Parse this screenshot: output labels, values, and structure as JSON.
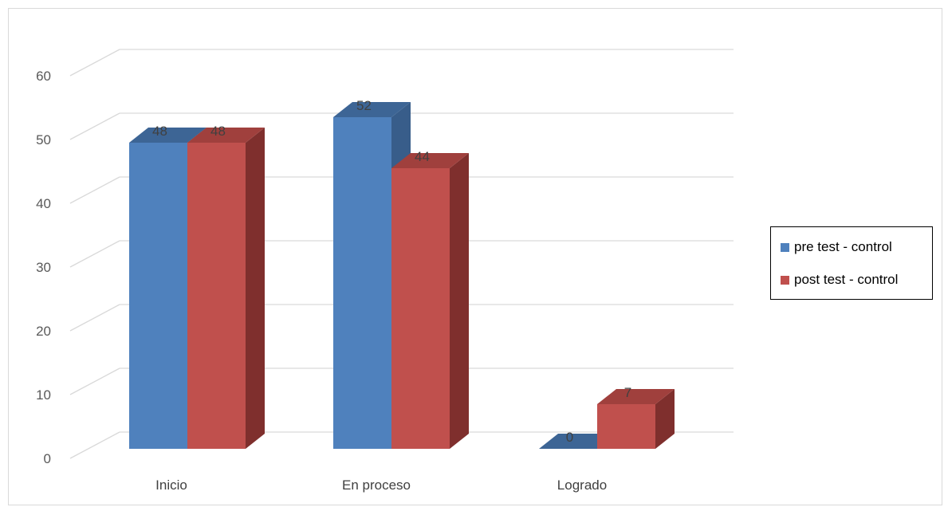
{
  "chart_data": {
    "type": "bar",
    "style": "3d-clustered-column",
    "categories": [
      "Inicio",
      "En proceso",
      "Logrado"
    ],
    "series": [
      {
        "name": "pre test - control",
        "values": [
          48,
          52,
          0
        ],
        "color": "#4f81bd",
        "top_color": "#3d6595",
        "side_color": "#385d8a"
      },
      {
        "name": "post test - control",
        "values": [
          48,
          44,
          7
        ],
        "color": "#c0504d",
        "top_color": "#a0403d",
        "side_color": "#7f2f2d"
      }
    ],
    "yticks": [
      0,
      10,
      20,
      30,
      40,
      50,
      60
    ],
    "ylim": [
      0,
      60
    ],
    "grid": true,
    "legend_position": "right",
    "colors": {
      "gridline": "#d9d9d9",
      "axis_text": "#595959"
    }
  },
  "legend": {
    "items": [
      {
        "label": "pre test - control",
        "color": "#4f81bd"
      },
      {
        "label": "post test - control",
        "color": "#c0504d"
      }
    ]
  }
}
